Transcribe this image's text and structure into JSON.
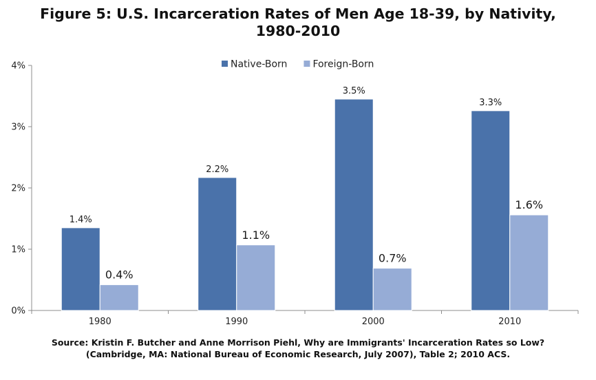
{
  "title_line1": "Figure 5: U.S. Incarceration Rates of Men Age 18-39, by Nativity,",
  "title_line2": "1980-2010",
  "source_line1": "Source: Kristin F. Butcher and Anne Morrison Piehl, Why are Immigrants' Incarceration Rates so Low?",
  "source_line2": "(Cambridge, MA: National Bureau of Economic Research, July 2007), Table 2; 2010 ACS.",
  "chart_data": {
    "type": "bar",
    "title": "Figure 5: U.S. Incarceration Rates of Men Age 18-39, by Nativity, 1980-2010",
    "xlabel": "",
    "ylabel": "",
    "categories": [
      "1980",
      "1990",
      "2000",
      "2010"
    ],
    "series": [
      {
        "name": "Native-Born",
        "color": "#4a72aa",
        "values": [
          1.35,
          2.17,
          3.45,
          3.26
        ],
        "labels": [
          "1.4%",
          "2.2%",
          "3.5%",
          "3.3%"
        ]
      },
      {
        "name": "Foreign-Born",
        "color": "#96acd6",
        "values": [
          0.42,
          1.07,
          0.69,
          1.56
        ],
        "labels": [
          "0.4%",
          "1.1%",
          "0.7%",
          "1.6%"
        ]
      }
    ],
    "ylim": [
      0,
      4
    ],
    "yticks": [
      0,
      1,
      2,
      3,
      4
    ],
    "ytick_labels": [
      "0%",
      "1%",
      "2%",
      "3%",
      "4%"
    ],
    "legend_position": "top-center",
    "grid": false
  }
}
